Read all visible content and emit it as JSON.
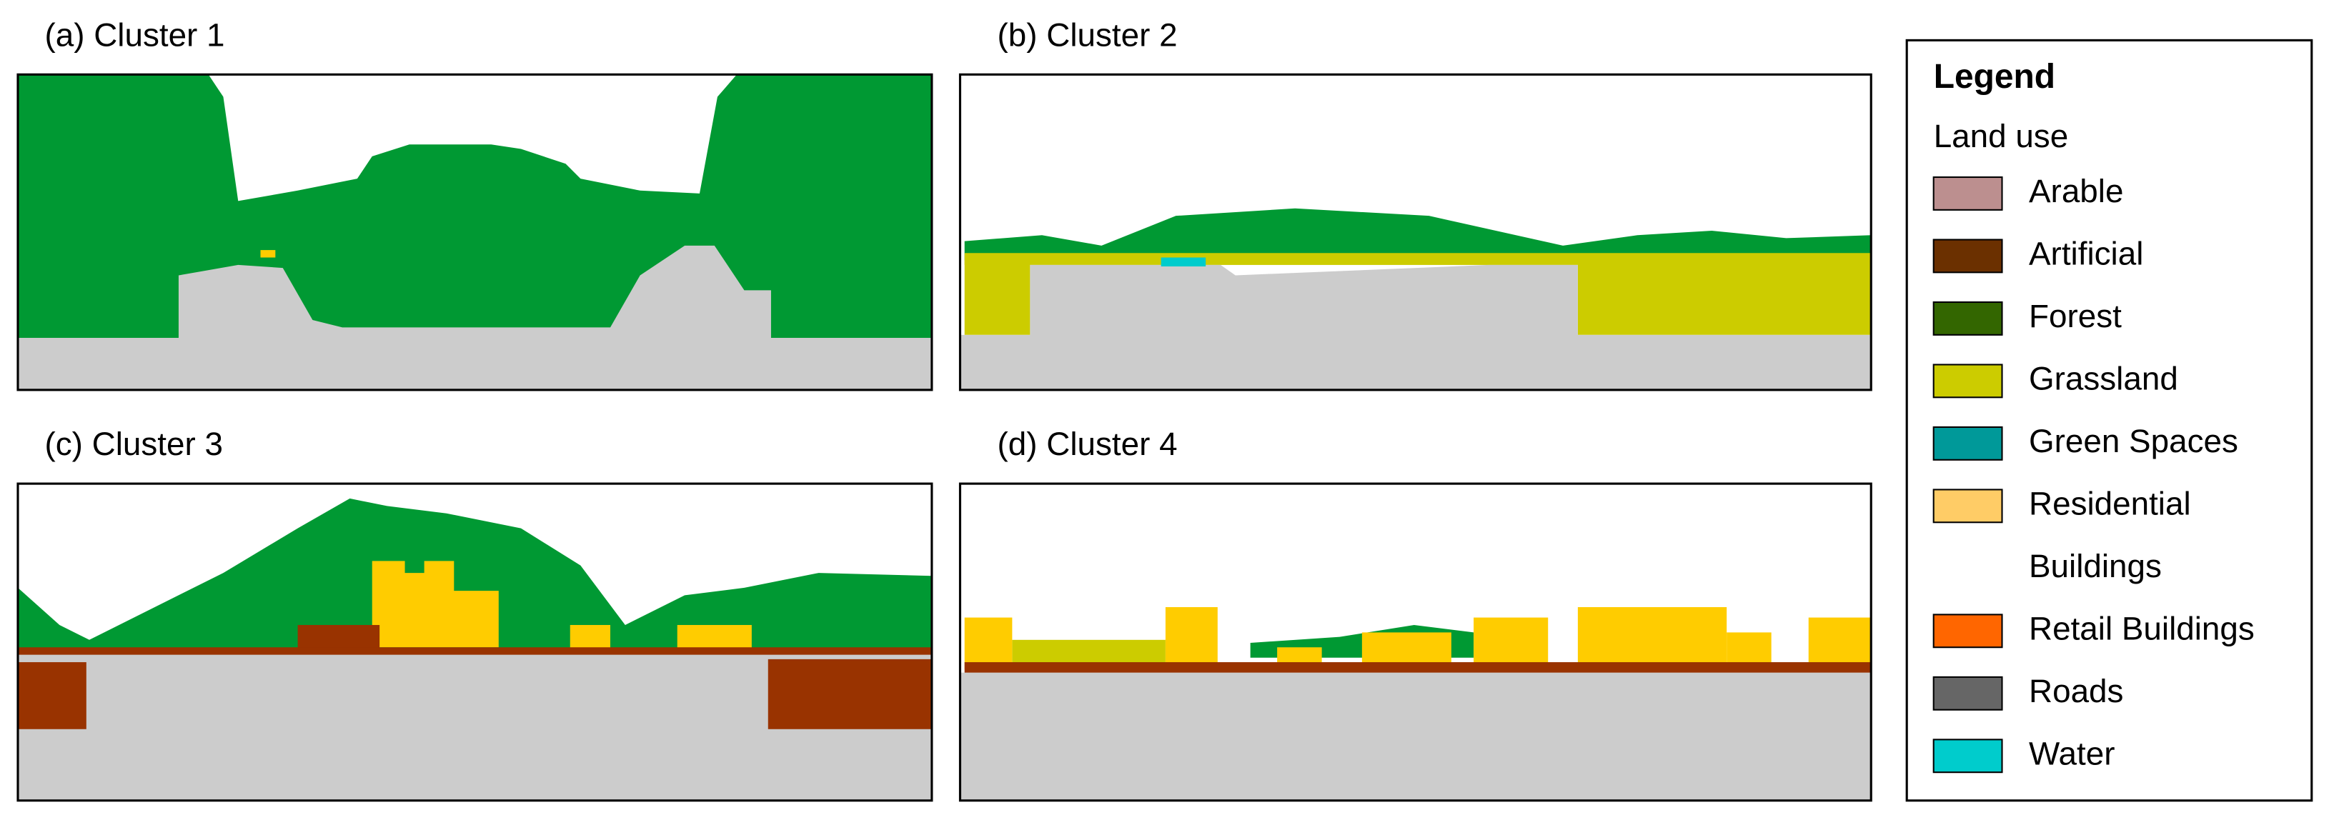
{
  "panels": [
    {
      "title": "(a) Cluster 1"
    },
    {
      "title": "(b) Cluster 2"
    },
    {
      "title": "(c) Cluster 3"
    },
    {
      "title": "(d) Cluster 4"
    }
  ],
  "legend": {
    "title": "Legend",
    "subtitle": "Land use",
    "items": [
      {
        "lines": [
          "Arable"
        ],
        "color": "#bc8f8f"
      },
      {
        "lines": [
          "Artificial"
        ],
        "color": "#6b3000"
      },
      {
        "lines": [
          "Forest"
        ],
        "color": "#336600"
      },
      {
        "lines": [
          "Grassland"
        ],
        "color": "#cccc00"
      },
      {
        "lines": [
          "Green Spaces"
        ],
        "color": "#009999"
      },
      {
        "lines": [
          "Residential",
          "Buildings"
        ],
        "color": "#ffcc66"
      },
      {
        "lines": [
          "Retail Buildings"
        ],
        "color": "#ff6600"
      },
      {
        "lines": [
          "Roads"
        ],
        "color": "#666666"
      },
      {
        "lines": [
          "Water"
        ],
        "color": "#00cccc"
      }
    ]
  }
}
